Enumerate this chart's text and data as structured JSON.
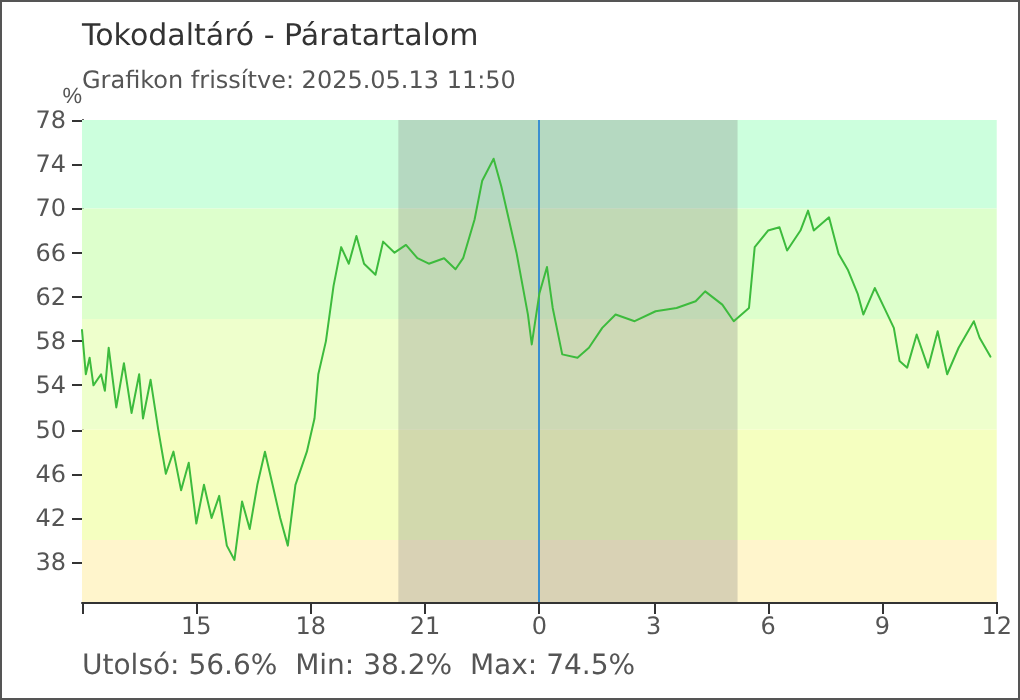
{
  "chart_data": {
    "type": "line",
    "title": "Tokodaltáró - Páratartalom",
    "subtitle": "Grafikon frissítve: 2025.05.13 11:50",
    "ylabel": "%",
    "annotations": [
      "Utolsó: 56.6%",
      "Min: 38.2%",
      "Max: 74.5%"
    ],
    "series": [
      {
        "color": "#3dbb3d",
        "x": [
          "2025-05-12T12:00",
          "2025-05-12T12:06",
          "2025-05-12T12:12",
          "2025-05-12T12:18",
          "2025-05-12T12:30",
          "2025-05-12T12:36",
          "2025-05-12T12:42",
          "2025-05-12T12:54",
          "2025-05-12T13:06",
          "2025-05-12T13:18",
          "2025-05-12T13:30",
          "2025-05-12T13:36",
          "2025-05-12T13:48",
          "2025-05-12T14:00",
          "2025-05-12T14:12",
          "2025-05-12T14:24",
          "2025-05-12T14:36",
          "2025-05-12T14:48",
          "2025-05-12T15:00",
          "2025-05-12T15:12",
          "2025-05-12T15:24",
          "2025-05-12T15:36",
          "2025-05-12T15:48",
          "2025-05-12T16:00",
          "2025-05-12T16:12",
          "2025-05-12T16:24",
          "2025-05-12T16:36",
          "2025-05-12T16:48",
          "2025-05-12T17:00",
          "2025-05-12T17:12",
          "2025-05-12T17:24",
          "2025-05-12T17:36",
          "2025-05-12T17:54",
          "2025-05-12T18:06",
          "2025-05-12T18:12",
          "2025-05-12T18:24",
          "2025-05-12T18:36",
          "2025-05-12T18:48",
          "2025-05-12T19:00",
          "2025-05-12T19:12",
          "2025-05-12T19:24",
          "2025-05-12T19:42",
          "2025-05-12T19:54",
          "2025-05-12T20:12",
          "2025-05-12T20:30",
          "2025-05-12T20:48",
          "2025-05-12T21:06",
          "2025-05-12T21:30",
          "2025-05-12T21:48",
          "2025-05-12T22:00",
          "2025-05-12T22:18",
          "2025-05-12T22:30",
          "2025-05-12T22:48",
          "2025-05-12T23:00",
          "2025-05-12T23:12",
          "2025-05-12T23:24",
          "2025-05-12T23:42",
          "2025-05-12T23:48",
          "2025-05-13T00:00",
          "2025-05-13T00:12",
          "2025-05-13T00:21",
          "2025-05-13T00:36",
          "2025-05-13T01:00",
          "2025-05-13T01:18",
          "2025-05-13T01:39",
          "2025-05-13T02:00",
          "2025-05-13T02:30",
          "2025-05-13T03:03",
          "2025-05-13T03:36",
          "2025-05-13T04:06",
          "2025-05-13T04:21",
          "2025-05-13T04:48",
          "2025-05-13T05:06",
          "2025-05-13T05:30",
          "2025-05-13T05:39",
          "2025-05-13T06:00",
          "2025-05-13T06:18",
          "2025-05-13T06:30",
          "2025-05-13T06:51",
          "2025-05-13T07:03",
          "2025-05-13T07:12",
          "2025-05-13T07:36",
          "2025-05-13T07:51",
          "2025-05-13T08:06",
          "2025-05-13T08:21",
          "2025-05-13T08:30",
          "2025-05-13T08:48",
          "2025-05-13T09:03",
          "2025-05-13T09:18",
          "2025-05-13T09:27",
          "2025-05-13T09:39",
          "2025-05-13T09:54",
          "2025-05-13T10:12",
          "2025-05-13T10:27",
          "2025-05-13T10:42",
          "2025-05-13T11:00",
          "2025-05-13T11:24",
          "2025-05-13T11:33",
          "2025-05-13T11:50"
        ],
        "values": [
          59,
          55,
          56.5,
          54,
          55,
          53.5,
          57.4,
          52,
          56,
          51.5,
          55,
          51,
          54.5,
          50,
          46,
          48,
          44.5,
          47,
          41.5,
          45,
          42,
          44,
          39.5,
          38.2,
          43.5,
          41,
          45,
          48,
          45,
          42,
          39.5,
          45,
          48,
          51,
          55,
          58,
          63,
          66.5,
          65,
          67.5,
          65,
          64,
          67,
          66,
          66.7,
          65.5,
          65,
          65.5,
          64.5,
          65.5,
          69,
          72.5,
          74.5,
          72,
          69,
          66,
          60.4,
          57.7,
          62.3,
          64.7,
          61,
          56.8,
          56.5,
          57.4,
          59.2,
          60.4,
          59.8,
          60.7,
          61,
          61.6,
          62.5,
          61.3,
          59.8,
          61,
          66.5,
          68,
          68.3,
          66.2,
          68,
          69.8,
          68,
          69.2,
          65.9,
          64.4,
          62.3,
          60.4,
          62.8,
          61,
          59.2,
          56.2,
          55.6,
          58.6,
          55.6,
          58.9,
          55,
          57.4,
          59.8,
          58.3,
          56.6
        ]
      }
    ],
    "xlim": [
      "2025-05-12T12:00",
      "2025-05-13T12:00"
    ],
    "xticks": [
      {
        "value": "2025-05-12T12:00",
        "label": null
      },
      {
        "value": "2025-05-12T15:00",
        "label": "15"
      },
      {
        "value": "2025-05-12T18:00",
        "label": "18"
      },
      {
        "value": "2025-05-12T21:00",
        "label": "21"
      },
      {
        "value": "2025-05-13T00:00",
        "label": "0"
      },
      {
        "value": "2025-05-13T03:00",
        "label": "3"
      },
      {
        "value": "2025-05-13T06:00",
        "label": "6"
      },
      {
        "value": "2025-05-13T09:00",
        "label": "9"
      },
      {
        "value": "2025-05-13T12:00",
        "label": "12"
      }
    ],
    "ylim": [
      34.4,
      78
    ],
    "yticks": [
      38,
      42,
      46,
      50,
      54,
      58,
      62,
      66,
      70,
      74,
      78
    ],
    "bands": [
      {
        "axis": "y",
        "from": 70,
        "to": 78,
        "color": "#ccffdd"
      },
      {
        "axis": "y",
        "from": 60,
        "to": 70,
        "color": "#ddffcc"
      },
      {
        "axis": "y",
        "from": 50,
        "to": 60,
        "color": "#eeffcc"
      },
      {
        "axis": "y",
        "from": 40,
        "to": 50,
        "color": "#f5ffc0"
      },
      {
        "axis": "y",
        "from": 34.4,
        "to": 40,
        "color": "#fff5cc"
      },
      {
        "axis": "x",
        "from": "2025-05-12T20:18",
        "to": "2025-05-13T05:12",
        "color": "#808080"
      }
    ],
    "ref_lines": [
      {
        "axis": "x",
        "value": "2025-05-13T00:00",
        "color": "#3a8fd0"
      }
    ],
    "grid": false,
    "marker": "none",
    "line_style": "solid"
  }
}
